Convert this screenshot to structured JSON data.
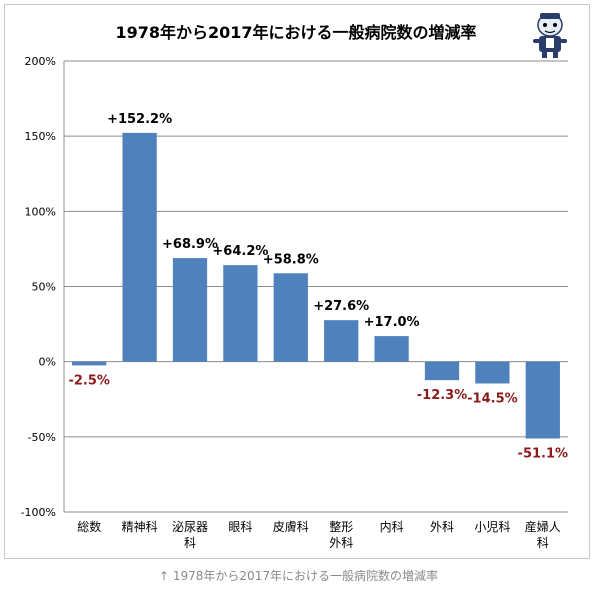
{
  "colors": {
    "bar": "#4f81bd",
    "positive_label": "#000000",
    "negative_label": "#8b1a1a",
    "grid": "#8c8c8c",
    "text": "#000000"
  },
  "caption": "↑ 1978年から2017年における一般病院数の増減率",
  "mascot_icon": "mascot-character-icon",
  "chart_data": {
    "type": "bar",
    "title": "1978年から2017年における一般病院数の増減率",
    "categories": [
      "総数",
      "精神科",
      "泌尿器\n科",
      "眼科",
      "皮膚科",
      "整形\n外科",
      "内科",
      "外科",
      "小児科",
      "産婦人\n科"
    ],
    "values": [
      -2.5,
      152.2,
      68.9,
      64.2,
      58.8,
      27.6,
      17.0,
      -12.3,
      -14.5,
      -51.1
    ],
    "data_labels": [
      "-2.5%",
      "+152.2%",
      "+68.9%",
      "+64.2%",
      "+58.8%",
      "+27.6%",
      "+17.0%",
      "-12.3%",
      "-14.5%",
      "-51.1%"
    ],
    "y_ticks": [
      200,
      150,
      100,
      50,
      0,
      -50,
      -100
    ],
    "y_tick_labels": [
      "200%",
      "150%",
      "100%",
      "50%",
      "0%",
      "-50%",
      "-100%"
    ],
    "ylim": [
      -100,
      200
    ],
    "grid": true,
    "legend": "none"
  }
}
